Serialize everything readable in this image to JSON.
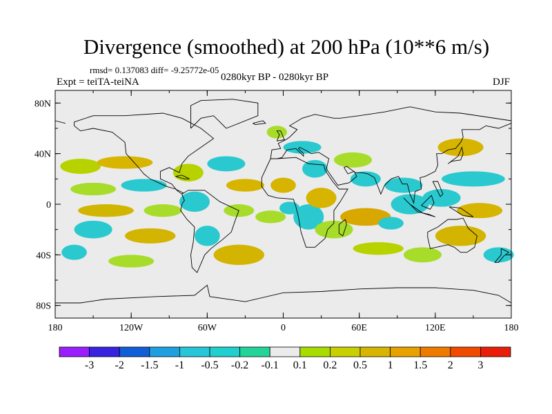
{
  "title": "Divergence (smoothed) at 200 hPa (10**6 m/s)",
  "stats": "rmsd= 0.137083 diff= -9.25772e-05",
  "experiment": "Expt = teiTA-teiNA",
  "period": "0280kyr BP - 0280kyr BP",
  "season": "DJF",
  "map": {
    "lon_range": [
      -180,
      180
    ],
    "lat_range": [
      -90,
      90
    ],
    "background_color": "#ebebeb",
    "x_ticks": [
      {
        "value": -180,
        "label": "180"
      },
      {
        "value": -120,
        "label": "120W"
      },
      {
        "value": -60,
        "label": "60W"
      },
      {
        "value": 0,
        "label": "0"
      },
      {
        "value": 60,
        "label": "60E"
      },
      {
        "value": 120,
        "label": "120E"
      },
      {
        "value": 180,
        "label": "180"
      }
    ],
    "y_ticks": [
      {
        "value": 80,
        "label": "80N"
      },
      {
        "value": 40,
        "label": "40N"
      },
      {
        "value": 0,
        "label": "0"
      },
      {
        "value": -40,
        "label": "40S"
      },
      {
        "value": -80,
        "label": "80S"
      }
    ],
    "anomalies": [
      {
        "lon": -160,
        "lat": 30,
        "rlon": 16,
        "rlat": 6,
        "color": "#b8d200"
      },
      {
        "lon": -125,
        "lat": 33,
        "rlon": 22,
        "rlat": 5,
        "color": "#d8b500"
      },
      {
        "lon": -150,
        "lat": 12,
        "rlon": 18,
        "rlat": 5,
        "color": "#a8dc2a"
      },
      {
        "lon": -110,
        "lat": 15,
        "rlon": 18,
        "rlat": 5,
        "color": "#2ac9cf"
      },
      {
        "lon": -140,
        "lat": -5,
        "rlon": 22,
        "rlat": 5,
        "color": "#d0b600"
      },
      {
        "lon": -95,
        "lat": -5,
        "rlon": 15,
        "rlat": 5,
        "color": "#a8dc2a"
      },
      {
        "lon": -150,
        "lat": -20,
        "rlon": 15,
        "rlat": 7,
        "color": "#2ac9cf"
      },
      {
        "lon": -105,
        "lat": -25,
        "rlon": 20,
        "rlat": 6,
        "color": "#d3b400"
      },
      {
        "lon": -165,
        "lat": -38,
        "rlon": 10,
        "rlat": 6,
        "color": "#2ac9cf"
      },
      {
        "lon": -120,
        "lat": -45,
        "rlon": 18,
        "rlat": 5,
        "color": "#a8dc2a"
      },
      {
        "lon": -75,
        "lat": 25,
        "rlon": 12,
        "rlat": 7,
        "color": "#b8d200"
      },
      {
        "lon": -70,
        "lat": 2,
        "rlon": 12,
        "rlat": 8,
        "color": "#2ac9cf"
      },
      {
        "lon": -60,
        "lat": -25,
        "rlon": 10,
        "rlat": 8,
        "color": "#2ac9cf"
      },
      {
        "lon": -45,
        "lat": 32,
        "rlon": 15,
        "rlat": 6,
        "color": "#2ac9cf"
      },
      {
        "lon": -30,
        "lat": 15,
        "rlon": 15,
        "rlat": 5,
        "color": "#d6b400"
      },
      {
        "lon": -35,
        "lat": -5,
        "rlon": 12,
        "rlat": 5,
        "color": "#a8dc2a"
      },
      {
        "lon": -35,
        "lat": -40,
        "rlon": 20,
        "rlat": 8,
        "color": "#d3b400"
      },
      {
        "lon": -10,
        "lat": -10,
        "rlon": 12,
        "rlat": 5,
        "color": "#a8dc2a"
      },
      {
        "lon": 0,
        "lat": 15,
        "rlon": 10,
        "rlat": 6,
        "color": "#d6b400"
      },
      {
        "lon": 5,
        "lat": -3,
        "rlon": 8,
        "rlat": 5,
        "color": "#2ac9cf"
      },
      {
        "lon": 15,
        "lat": 45,
        "rlon": 15,
        "rlat": 5,
        "color": "#2ac9cf"
      },
      {
        "lon": 25,
        "lat": 28,
        "rlon": 10,
        "rlat": 7,
        "color": "#2ac9cf"
      },
      {
        "lon": 20,
        "lat": -10,
        "rlon": 12,
        "rlat": 10,
        "color": "#2ac9cf"
      },
      {
        "lon": 30,
        "lat": 5,
        "rlon": 12,
        "rlat": 8,
        "color": "#d6b400"
      },
      {
        "lon": 40,
        "lat": -20,
        "rlon": 15,
        "rlat": 7,
        "color": "#a8dc2a"
      },
      {
        "lon": 55,
        "lat": 35,
        "rlon": 15,
        "rlat": 6,
        "color": "#a8dc2a"
      },
      {
        "lon": 65,
        "lat": 20,
        "rlon": 12,
        "rlat": 6,
        "color": "#2ac9cf"
      },
      {
        "lon": 65,
        "lat": -10,
        "rlon": 20,
        "rlat": 7,
        "color": "#d8a800"
      },
      {
        "lon": 75,
        "lat": -35,
        "rlon": 20,
        "rlat": 5,
        "color": "#b8d200"
      },
      {
        "lon": 95,
        "lat": 15,
        "rlon": 15,
        "rlat": 6,
        "color": "#2ac9cf"
      },
      {
        "lon": 100,
        "lat": 0,
        "rlon": 15,
        "rlat": 8,
        "color": "#2ac9cf"
      },
      {
        "lon": 125,
        "lat": 5,
        "rlon": 15,
        "rlat": 7,
        "color": "#2ac9cf"
      },
      {
        "lon": 150,
        "lat": 20,
        "rlon": 25,
        "rlat": 6,
        "color": "#2ac9cf"
      },
      {
        "lon": 140,
        "lat": 45,
        "rlon": 18,
        "rlat": 7,
        "color": "#d6b400"
      },
      {
        "lon": 155,
        "lat": -5,
        "rlon": 18,
        "rlat": 6,
        "color": "#d6b400"
      },
      {
        "lon": 140,
        "lat": -25,
        "rlon": 20,
        "rlat": 8,
        "color": "#d3b400"
      },
      {
        "lon": 170,
        "lat": -40,
        "rlon": 12,
        "rlat": 6,
        "color": "#2ac9cf"
      },
      {
        "lon": 110,
        "lat": -40,
        "rlon": 15,
        "rlat": 6,
        "color": "#a8dc2a"
      },
      {
        "lon": -5,
        "lat": 57,
        "rlon": 8,
        "rlat": 5,
        "color": "#a8dc2a"
      },
      {
        "lon": 85,
        "lat": -15,
        "rlon": 10,
        "rlat": 5,
        "color": "#2ac9cf"
      }
    ]
  },
  "colorbar": {
    "labels": [
      "-3",
      "-2",
      "-1.5",
      "-1",
      "-0.5",
      "-0.2",
      "-0.1",
      "0.1",
      "0.2",
      "0.5",
      "1",
      "1.5",
      "2",
      "3"
    ],
    "colors": [
      "#9a1fff",
      "#3824e0",
      "#125ed8",
      "#1ea0e0",
      "#27c6d8",
      "#20cfcf",
      "#22d49a",
      "#ebebeb",
      "#a8dc00",
      "#c8d000",
      "#d8b500",
      "#e8a200",
      "#ef7a00",
      "#ef4a00",
      "#e81e0a"
    ]
  }
}
